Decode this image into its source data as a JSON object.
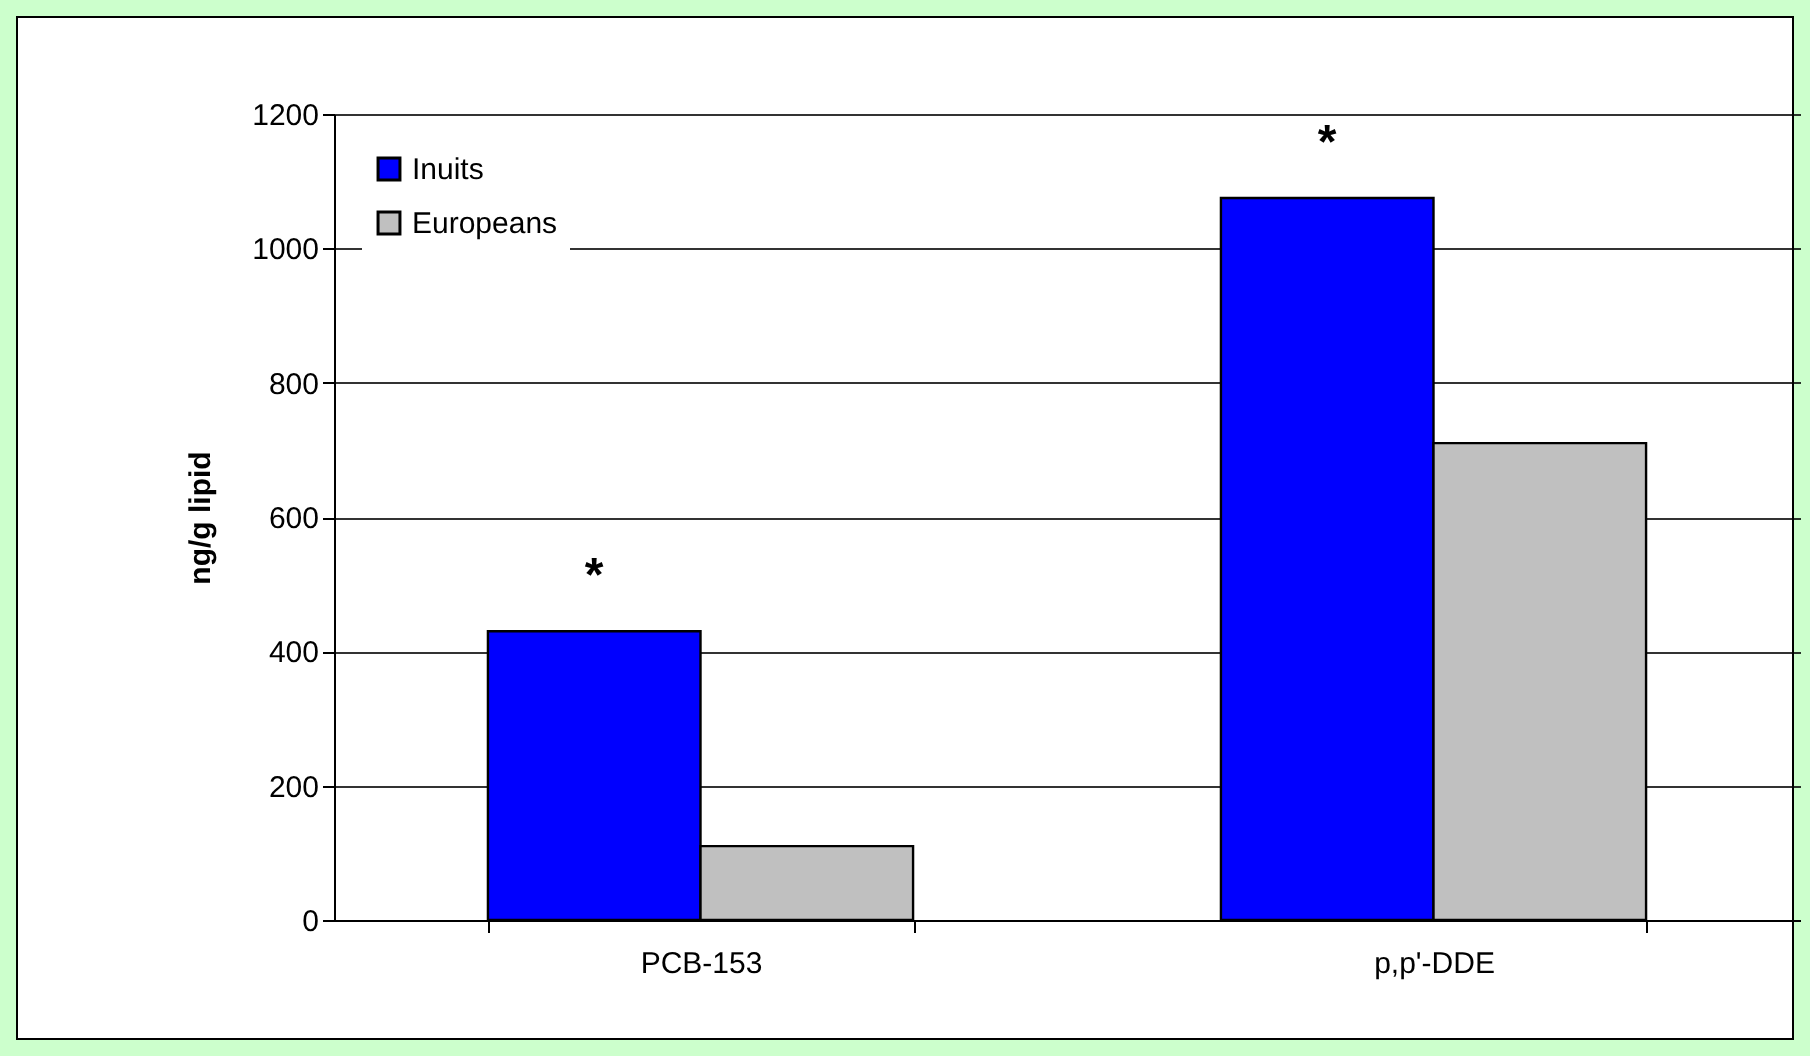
{
  "chart_data": {
    "type": "bar",
    "ylabel": "ng/g lipid",
    "categories": [
      "PCB-153",
      "p,p'-DDE"
    ],
    "series": [
      {
        "name": "Inuits",
        "color": "#0000ff",
        "values": [
          430,
          1075
        ]
      },
      {
        "name": "Europeans",
        "color": "#c0c0c0",
        "values": [
          110,
          710
        ]
      }
    ],
    "ylim": [
      0,
      1200
    ],
    "yticks": [
      0,
      200,
      400,
      600,
      800,
      1000,
      1200
    ],
    "grid": "y",
    "legend": "top left",
    "annotations": [
      "*",
      "*"
    ]
  }
}
